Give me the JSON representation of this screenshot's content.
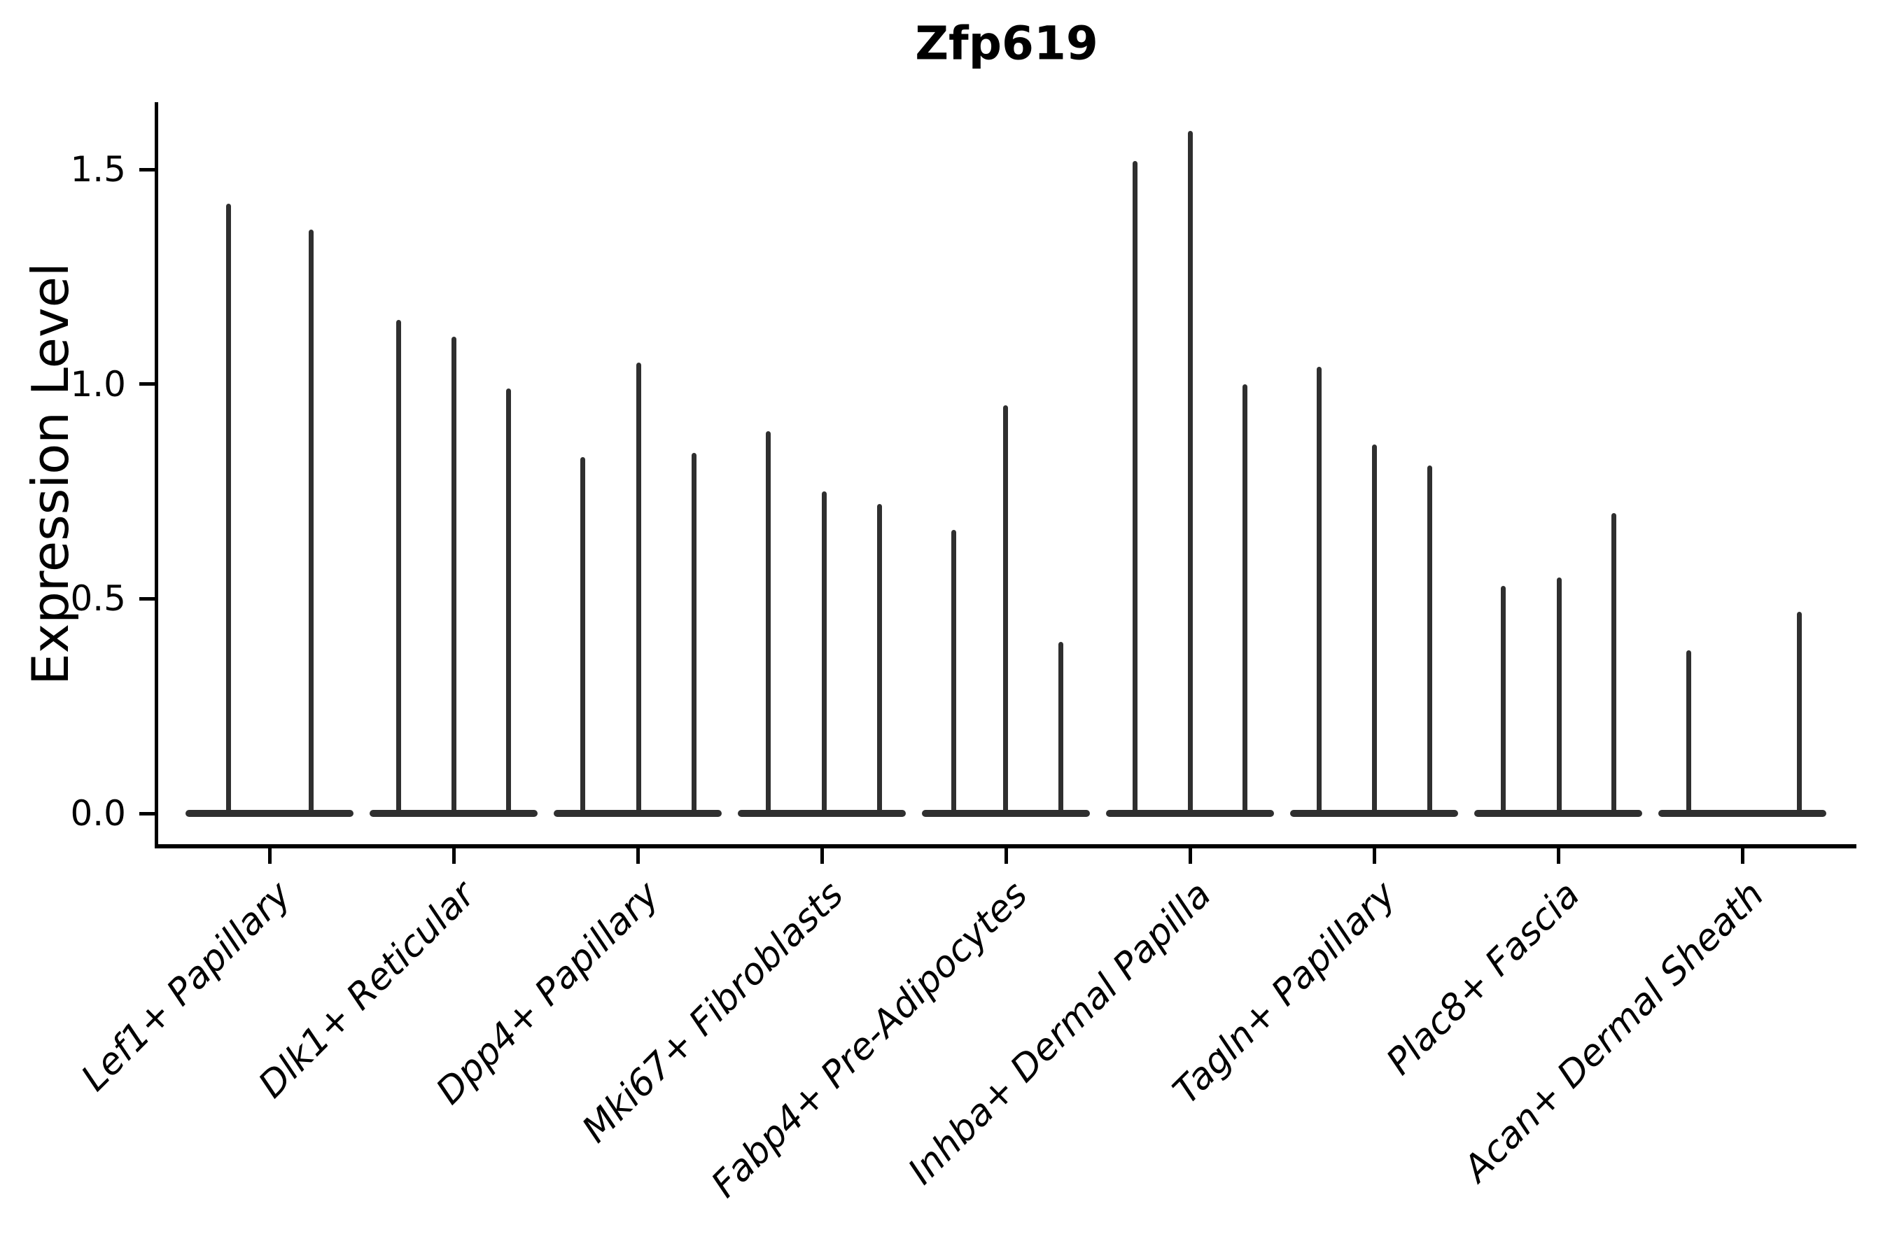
{
  "title": "Zfp619",
  "ylabel": "Expression Level",
  "chart_data": {
    "type": "violin",
    "title": "Zfp619",
    "xlabel": "",
    "ylabel": "Expression Level",
    "ylim": [
      0,
      1.66
    ],
    "yticks": [
      0.0,
      0.5,
      1.0,
      1.5
    ],
    "ytick_labels": [
      "0.0",
      "0.5",
      "1.0",
      "1.5"
    ],
    "grid": false,
    "legend": "none",
    "description": "Narrow violin plot of Zfp619 expression; each cell-type group shows 2-3 needle-thin violins (flat base at 0 with a thin spike up to the max expression value).",
    "categories": [
      "Lef1+ Papillary",
      "Dlk1+ Reticular",
      "Dpp4+ Papillary",
      "Mki67+ Fibroblasts",
      "Fabp4+ Pre-Adipocytes",
      "Inhba+ Dermal Papilla",
      "Tagln+ Papillary",
      "Plac8+ Fascia",
      "Acan+ Dermal Sheath"
    ],
    "groups": [
      {
        "label": "Lef1+ Papillary",
        "violins": [
          {
            "offset": -59,
            "max": 1.42
          },
          {
            "offset": 59,
            "max": 1.36
          }
        ]
      },
      {
        "label": "Dlk1+ Reticular",
        "violins": [
          {
            "offset": -79,
            "max": 1.15
          },
          {
            "offset": 0,
            "max": 1.11
          },
          {
            "offset": 78,
            "max": 0.99
          }
        ]
      },
      {
        "label": "Dpp4+ Papillary",
        "violins": [
          {
            "offset": -79,
            "max": 0.83
          },
          {
            "offset": 1,
            "max": 1.05
          },
          {
            "offset": 80,
            "max": 0.84
          }
        ]
      },
      {
        "label": "Mki67+ Fibroblasts",
        "violins": [
          {
            "offset": -77,
            "max": 0.89
          },
          {
            "offset": 3,
            "max": 0.75
          },
          {
            "offset": 82,
            "max": 0.72
          }
        ]
      },
      {
        "label": "Fabp4+ Pre-Adipocytes",
        "violins": [
          {
            "offset": -75,
            "max": 0.66
          },
          {
            "offset": -1,
            "max": 0.95
          },
          {
            "offset": 78,
            "max": 0.4
          }
        ]
      },
      {
        "label": "Inhba+ Dermal Papilla",
        "violins": [
          {
            "offset": -79,
            "max": 1.52
          },
          {
            "offset": 0,
            "max": 1.59
          },
          {
            "offset": 78,
            "max": 1.0
          }
        ]
      },
      {
        "label": "Tagln+ Papillary",
        "violins": [
          {
            "offset": -79,
            "max": 1.04
          },
          {
            "offset": 0,
            "max": 0.86
          },
          {
            "offset": 79,
            "max": 0.81
          }
        ]
      },
      {
        "label": "Plac8+ Fascia",
        "violins": [
          {
            "offset": -79,
            "max": 0.53
          },
          {
            "offset": 1,
            "max": 0.55
          },
          {
            "offset": 79,
            "max": 0.7
          }
        ]
      },
      {
        "label": "Acan+ Dermal Sheath",
        "violins": [
          {
            "offset": -77,
            "max": 0.38
          },
          {
            "offset": 81,
            "max": 0.47
          }
        ]
      }
    ],
    "marks_color": "#2f2f2f",
    "axis_color": "#000000"
  }
}
